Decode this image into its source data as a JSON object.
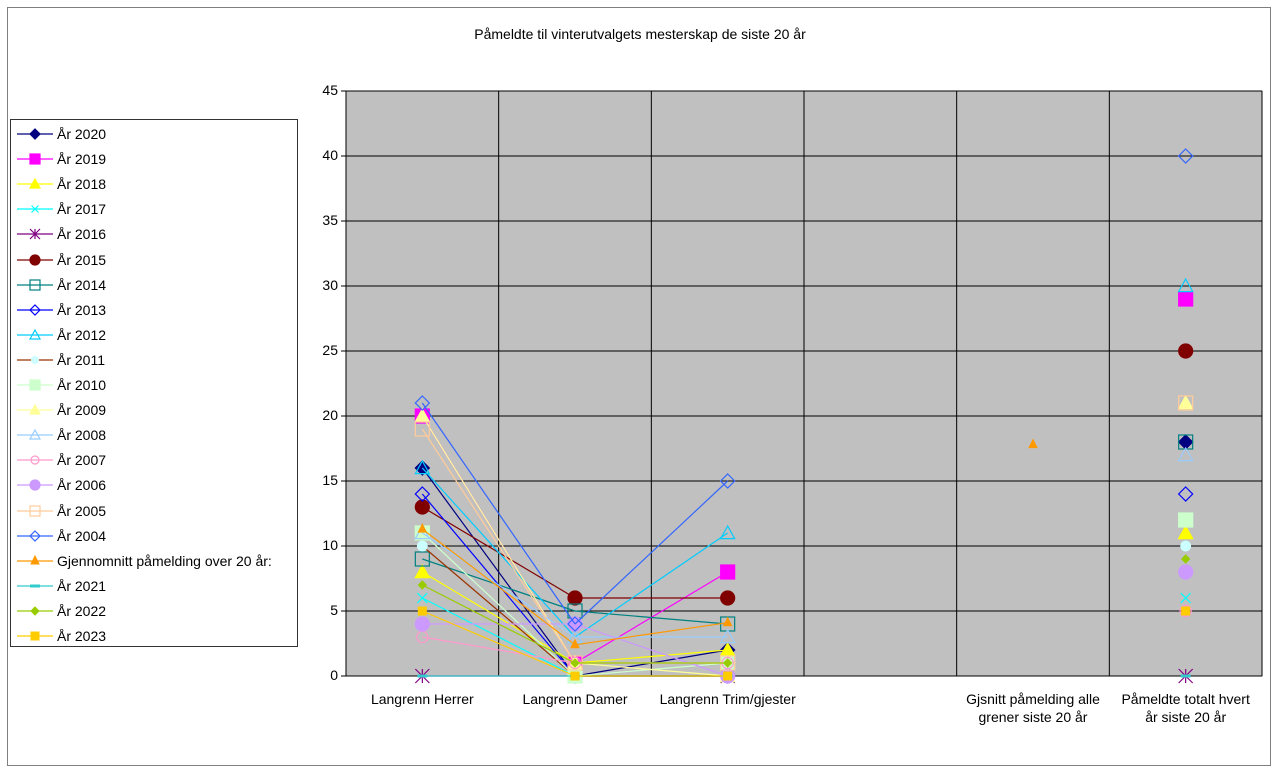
{
  "chart_data": {
    "type": "line",
    "title": "Påmeldte til vinterutvalgets mesterskap de siste 20 år",
    "categories": [
      "Langrenn Herrer",
      "Langrenn Damer",
      "Langrenn Trim/gjester",
      "",
      "Gjsnitt påmelding alle grener siste 20 år",
      "Påmeldte totalt hvert år siste 20 år"
    ],
    "ylim": [
      0,
      45
    ],
    "yticks": [
      0,
      5,
      10,
      15,
      20,
      25,
      30,
      35,
      40,
      45
    ],
    "grid": true,
    "legend_position": "left",
    "series": [
      {
        "name": "År 2020",
        "color": "#000080",
        "marker": "diamond-filled",
        "values": [
          16,
          0,
          2,
          null,
          null,
          18
        ]
      },
      {
        "name": "År 2019",
        "color": "#ff00ff",
        "marker": "square-filled",
        "values": [
          20,
          1,
          8,
          null,
          null,
          29
        ]
      },
      {
        "name": "År 2018",
        "color": "#ffff00",
        "marker": "triangle-filled",
        "values": [
          8,
          1,
          2,
          null,
          null,
          11
        ]
      },
      {
        "name": "År 2017",
        "color": "#00ffff",
        "marker": "x",
        "values": [
          6,
          0,
          0,
          null,
          null,
          6
        ]
      },
      {
        "name": "År 2016",
        "color": "#800080",
        "marker": "star",
        "values": [
          0,
          0,
          0,
          null,
          null,
          0
        ]
      },
      {
        "name": "År 2015",
        "color": "#800000",
        "marker": "circle-filled",
        "values": [
          13,
          6,
          6,
          null,
          null,
          25
        ]
      },
      {
        "name": "År 2014",
        "color": "#008080",
        "marker": "square-open",
        "values": [
          9,
          5,
          4,
          null,
          null,
          18
        ]
      },
      {
        "name": "År 2013",
        "color": "#0000ff",
        "marker": "diamond-open",
        "values": [
          14,
          0,
          0,
          null,
          null,
          14
        ]
      },
      {
        "name": "År 2012",
        "color": "#00ccff",
        "marker": "triangle-open",
        "values": [
          16,
          3,
          11,
          null,
          null,
          30
        ]
      },
      {
        "name": "År 2011",
        "color": "#993300",
        "marker": "circle-filled-cyan",
        "values": [
          10,
          0,
          0,
          null,
          null,
          10
        ]
      },
      {
        "name": "År 2010",
        "color": "#ccffcc",
        "marker": "square-filled",
        "values": [
          11,
          0,
          1,
          null,
          null,
          12
        ]
      },
      {
        "name": "År 2009",
        "color": "#ffff99",
        "marker": "triangle-filled",
        "values": [
          20,
          1,
          0,
          null,
          null,
          21
        ]
      },
      {
        "name": "År 2008",
        "color": "#99ccff",
        "marker": "triangle-open",
        "values": [
          11,
          3,
          3,
          null,
          null,
          17
        ]
      },
      {
        "name": "År 2007",
        "color": "#ff99cc",
        "marker": "circle-open",
        "values": [
          3,
          1,
          1,
          null,
          null,
          5
        ]
      },
      {
        "name": "År 2006",
        "color": "#cc99ff",
        "marker": "circle-filled",
        "values": [
          4,
          4,
          0,
          null,
          null,
          8
        ]
      },
      {
        "name": "År 2005",
        "color": "#ffcc99",
        "marker": "square-open",
        "values": [
          19,
          1,
          1,
          null,
          null,
          21
        ]
      },
      {
        "name": "År 2004",
        "color": "#3366ff",
        "marker": "diamond-open",
        "values": [
          21,
          4,
          15,
          null,
          null,
          40
        ]
      },
      {
        "name": "Gjennomnitt påmelding over 20 år:",
        "color": "#ff9900",
        "marker": "small-triangle",
        "values": [
          11.3,
          2.4,
          4.1,
          null,
          17.8,
          null
        ]
      },
      {
        "name": "År 2021",
        "color": "#33cccc",
        "marker": "dash",
        "values": [
          0,
          0,
          0,
          null,
          null,
          0
        ]
      },
      {
        "name": "År 2022",
        "color": "#99cc00",
        "marker": "small-diamond",
        "values": [
          7,
          1,
          1,
          null,
          null,
          9
        ]
      },
      {
        "name": "År 2023",
        "color": "#ffcc00",
        "marker": "small-square",
        "values": [
          5,
          0,
          0,
          null,
          null,
          5
        ]
      }
    ]
  }
}
